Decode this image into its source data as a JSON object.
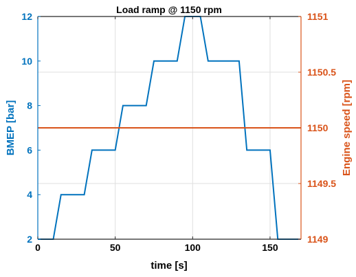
{
  "chart_data": {
    "type": "line",
    "title": "Load ramp @ 1150 rpm",
    "xlabel": "time [s]",
    "xlim": [
      0,
      170
    ],
    "xticks": [
      0,
      50,
      100,
      150
    ],
    "grid": true,
    "left_axis": {
      "label": "BMEP [bar]",
      "ylim": [
        2,
        12
      ],
      "ticks": [
        2,
        4,
        6,
        8,
        10,
        12
      ],
      "color": "#0072BD"
    },
    "right_axis": {
      "label": "Engine speed [rpm]",
      "ylim": [
        1149,
        1151
      ],
      "ticks": [
        1149,
        1149.5,
        1150,
        1150.5,
        1151
      ],
      "color": "#D95319"
    },
    "series": [
      {
        "axis": "left",
        "color": "#0072BD",
        "x": [
          0,
          10,
          15,
          30,
          35,
          50,
          55,
          70,
          75,
          90,
          95,
          105,
          110,
          130,
          135,
          150,
          155,
          170
        ],
        "y": [
          2,
          2,
          4,
          4,
          6,
          6,
          8,
          8,
          10,
          10,
          12,
          12,
          10,
          10,
          6,
          6,
          2,
          2
        ]
      },
      {
        "axis": "right",
        "color": "#D95319",
        "x": [
          0,
          170
        ],
        "y": [
          1150,
          1150
        ]
      }
    ]
  }
}
